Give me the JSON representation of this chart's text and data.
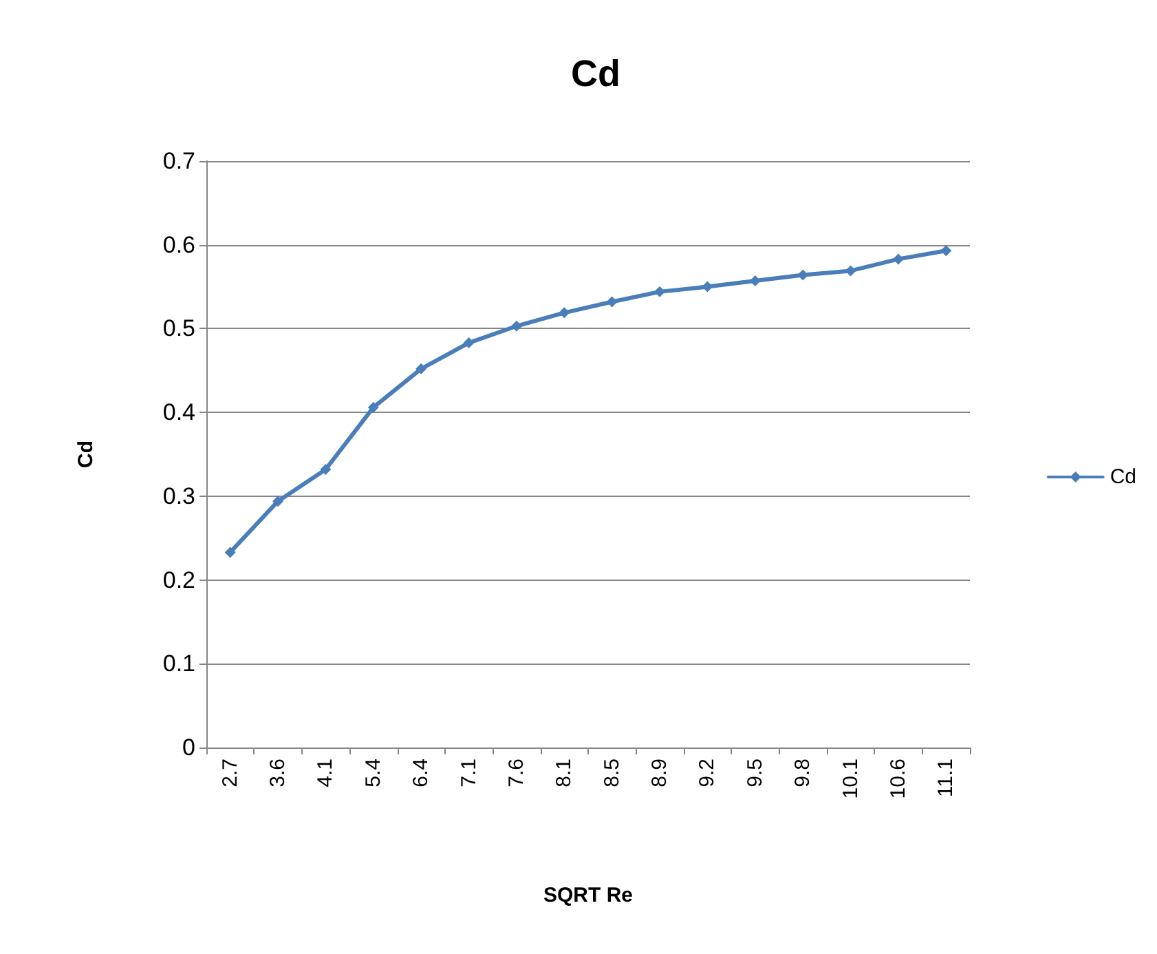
{
  "chart_data": {
    "type": "line",
    "title": "Cd",
    "xlabel": "SQRT Re",
    "ylabel": "Cd",
    "categories": [
      "2.7",
      "3.6",
      "4.1",
      "5.4",
      "6.4",
      "7.1",
      "7.6",
      "8.1",
      "8.5",
      "8.9",
      "9.2",
      "9.5",
      "9.8",
      "10.1",
      "10.6",
      "11.1"
    ],
    "series": [
      {
        "name": "Cd",
        "color": "#4a7ebb",
        "values": [
          0.233,
          0.294,
          0.332,
          0.406,
          0.452,
          0.483,
          0.503,
          0.519,
          0.532,
          0.544,
          0.55,
          0.557,
          0.564,
          0.569,
          0.583,
          0.593
        ]
      }
    ],
    "ylim": [
      0,
      0.7
    ],
    "yticks": [
      0,
      0.1,
      0.2,
      0.3,
      0.4,
      0.5,
      0.6,
      0.7
    ],
    "grid": "y",
    "legend": "right",
    "marker": "diamond",
    "line_style": "solid"
  }
}
